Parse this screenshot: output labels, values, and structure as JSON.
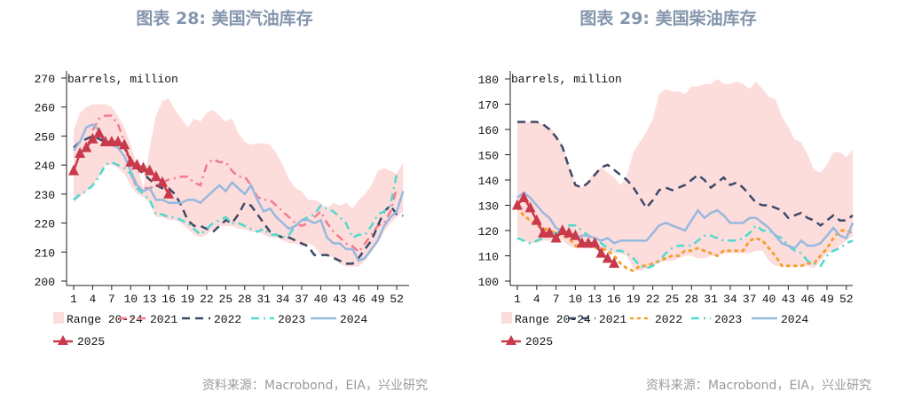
{
  "charts": [
    {
      "title": "图表 28: 美国汽油库存",
      "source": "资料来源：Macrobond，EIA，兴业研究"
    },
    {
      "title": "图表 29: 美国柴油库存",
      "source": "资料来源：Macrobond，EIA，兴业研究"
    }
  ],
  "chart_data": [
    {
      "type": "line",
      "title": "图表 28: 美国汽油库存",
      "unit_label": "barrels, million",
      "ylim": [
        200,
        270
      ],
      "yticks": [
        "200",
        "210",
        "220",
        "230",
        "240",
        "250",
        "260",
        "270"
      ],
      "xticks": [
        "1",
        "4",
        "7",
        "10",
        "13",
        "16",
        "19",
        "22",
        "25",
        "28",
        "31",
        "34",
        "37",
        "40",
        "43",
        "46",
        "49",
        "52"
      ],
      "xlabel": "",
      "ylabel": "",
      "band": {
        "name": "Range 20-24",
        "color": "#fddcdc",
        "upper": [
          252,
          258,
          260,
          261,
          261,
          261,
          260,
          257,
          253,
          247,
          240,
          232,
          246,
          257,
          262,
          263,
          259,
          256,
          253,
          256,
          255,
          258,
          259,
          257,
          255,
          256,
          251,
          248,
          247,
          247.5,
          247.5,
          247,
          244,
          240,
          235,
          232,
          231,
          228,
          228,
          227,
          225,
          227,
          226,
          227,
          225,
          228,
          230,
          233,
          238,
          239,
          238,
          237,
          241
        ],
        "lower": [
          227,
          229,
          231,
          233,
          236,
          240,
          240,
          239,
          237,
          233,
          230,
          229,
          227,
          222,
          222,
          221,
          221,
          220,
          218,
          216,
          215,
          216,
          218,
          219,
          219,
          219,
          218,
          218,
          217,
          217,
          216,
          215,
          215,
          214,
          213,
          213,
          212,
          213,
          212,
          209,
          209,
          208,
          206,
          205,
          205,
          205,
          207,
          210,
          213,
          217,
          220,
          222,
          224
        ]
      },
      "series": [
        {
          "name": "2021",
          "color": "#f27a8c",
          "style": "dashdot",
          "values": [
            null,
            null,
            null,
            252,
            256,
            257,
            257,
            254,
            248,
            238,
            232,
            232,
            232,
            233,
            234,
            235,
            235.5,
            236,
            236,
            234,
            233,
            240,
            242,
            241,
            241,
            238,
            236,
            236,
            233,
            229,
            228,
            228,
            226,
            224,
            222,
            220,
            219,
            220,
            222,
            224,
            220,
            217,
            215,
            213,
            212,
            210,
            213,
            216,
            219,
            220,
            224,
            232,
            null
          ]
        },
        {
          "name": "2022",
          "color": "#3d4a66",
          "style": "dash",
          "values": [
            246,
            248,
            249,
            250,
            249,
            248,
            247,
            246,
            246,
            242,
            239,
            237,
            235,
            233,
            232,
            232,
            230,
            226,
            221,
            219,
            219,
            218,
            217,
            219,
            221,
            220,
            223,
            227,
            226,
            223,
            220,
            217,
            216,
            215,
            215,
            214,
            213,
            212,
            209,
            209,
            209,
            208,
            207,
            206,
            206,
            208,
            211,
            214,
            219,
            224,
            226,
            223,
            222.5
          ]
        },
        {
          "name": "2023",
          "color": "#4fd9cf",
          "style": "dashdot",
          "values": [
            228,
            230,
            231,
            233,
            236,
            240,
            241,
            240,
            239,
            237,
            232,
            230,
            228,
            223,
            223,
            222,
            222,
            221,
            220,
            218,
            216,
            218,
            220,
            221,
            222,
            220,
            220,
            219,
            218,
            217,
            218,
            216,
            216,
            215,
            216,
            219,
            221,
            222,
            223,
            226,
            225,
            224,
            222,
            220,
            215,
            216,
            216,
            219,
            223,
            224,
            226,
            237,
            null
          ]
        },
        {
          "name": "2024",
          "color": "#97b9dd",
          "style": "solid",
          "values": [
            245,
            248,
            253,
            254,
            252,
            248,
            247,
            246,
            243,
            238,
            233,
            231,
            232,
            228,
            228,
            227,
            227,
            227,
            228,
            228,
            227,
            229,
            231,
            233,
            231,
            234,
            232,
            230,
            233,
            228,
            224,
            225,
            222,
            220,
            218,
            219,
            221,
            221,
            220,
            221,
            215,
            213,
            213,
            211,
            211,
            207,
            208,
            211,
            214,
            219,
            222,
            224,
            231
          ]
        },
        {
          "name": "2025",
          "color": "#c83a4b",
          "style": "triangle",
          "values": [
            238,
            244,
            246,
            249,
            251,
            248,
            248,
            248,
            247,
            241,
            240,
            239,
            238,
            236,
            234,
            230
          ]
        }
      ]
    },
    {
      "type": "line",
      "title": "图表 29: 美国柴油库存",
      "unit_label": "barrels, million",
      "ylim": [
        100,
        180
      ],
      "yticks": [
        "100",
        "110",
        "120",
        "130",
        "140",
        "150",
        "160",
        "170",
        "180"
      ],
      "xticks": [
        "1",
        "4",
        "7",
        "10",
        "13",
        "16",
        "19",
        "22",
        "25",
        "28",
        "31",
        "34",
        "37",
        "40",
        "43",
        "46",
        "49",
        "52"
      ],
      "xlabel": "",
      "ylabel": "",
      "band": {
        "name": "Range 20-24",
        "color": "#fddcdc",
        "upper": [
          163,
          163,
          163,
          163,
          162,
          161,
          158,
          154,
          146,
          138,
          137,
          140,
          143,
          145,
          143,
          141,
          138,
          142,
          151,
          155,
          159,
          164,
          174,
          176,
          175,
          175,
          174,
          177,
          177,
          178,
          178,
          180,
          178,
          178,
          179,
          178,
          176,
          179,
          176,
          173,
          172,
          165,
          161,
          156,
          155,
          150,
          144,
          143,
          146,
          151,
          151,
          149,
          152
        ],
        "lower": [
          118,
          116,
          115,
          115,
          116,
          116,
          117,
          116,
          114,
          113,
          113,
          113,
          113,
          112,
          112,
          111,
          111,
          110,
          105,
          104,
          105,
          106,
          107,
          108,
          108,
          109,
          110,
          110,
          109,
          109,
          110,
          110,
          111,
          111,
          111,
          111,
          111,
          112,
          112,
          108,
          106,
          106,
          106,
          106,
          106,
          106,
          105,
          108,
          111,
          112,
          114,
          116,
          118
        ]
      },
      "series": [
        {
          "name": "2021",
          "color": "#3d4a66",
          "style": "dash",
          "values": [
            163,
            163,
            163,
            163,
            162,
            160,
            157,
            153,
            145,
            138,
            137,
            139,
            142,
            145,
            146,
            144,
            142,
            140,
            137,
            133,
            129,
            132,
            136,
            137,
            136,
            137,
            138,
            140,
            142,
            140,
            137,
            139,
            141,
            138,
            139,
            137,
            134,
            131,
            130,
            130,
            129,
            128,
            125,
            126,
            127,
            125,
            124,
            122,
            124,
            126,
            124,
            124,
            126
          ]
        },
        {
          "name": "2022",
          "color": "#f5a030",
          "style": "dot",
          "values": [
            129,
            126,
            124,
            122,
            121,
            120,
            119,
            118,
            117,
            114,
            114,
            114,
            113,
            113,
            112,
            110,
            107,
            105,
            104,
            106,
            106,
            107,
            108,
            109,
            110,
            110,
            112,
            112,
            113,
            112,
            111,
            110,
            112,
            112,
            112,
            112,
            116,
            117,
            116,
            113,
            110,
            106,
            106,
            106,
            106,
            107,
            107,
            110,
            113,
            117,
            120,
            120,
            119
          ]
        },
        {
          "name": "2023",
          "color": "#4fd9cf",
          "style": "dashdot",
          "values": [
            117,
            116,
            115,
            116,
            117,
            118,
            119,
            120,
            122,
            122,
            120,
            118,
            117,
            115,
            113,
            112,
            112,
            111,
            109,
            106,
            105,
            106,
            108,
            111,
            113,
            114,
            114,
            114,
            116,
            118,
            118,
            117,
            116,
            116,
            116,
            117,
            119,
            122,
            120,
            120,
            118,
            117,
            114,
            112,
            111,
            108,
            107,
            106,
            110,
            112,
            113,
            115,
            116
          ]
        },
        {
          "name": "2024",
          "color": "#97b9dd",
          "style": "solid",
          "values": [
            133,
            135,
            133,
            130,
            127,
            125,
            121,
            120,
            119,
            117,
            118,
            118,
            117,
            116,
            117,
            115,
            116,
            116,
            116,
            116,
            116,
            119,
            122,
            123,
            122,
            121,
            120,
            124,
            128,
            125,
            127,
            128,
            126,
            123,
            123,
            123,
            125,
            125,
            123,
            121,
            118,
            115,
            114,
            113,
            116,
            114,
            114,
            115,
            118,
            121,
            118,
            117,
            123
          ]
        },
        {
          "name": "2025",
          "color": "#c83a4b",
          "style": "triangle",
          "values": [
            130,
            133,
            129,
            124,
            119,
            119,
            117,
            120,
            119,
            118,
            115,
            115,
            115,
            111,
            109,
            107
          ]
        }
      ]
    }
  ]
}
